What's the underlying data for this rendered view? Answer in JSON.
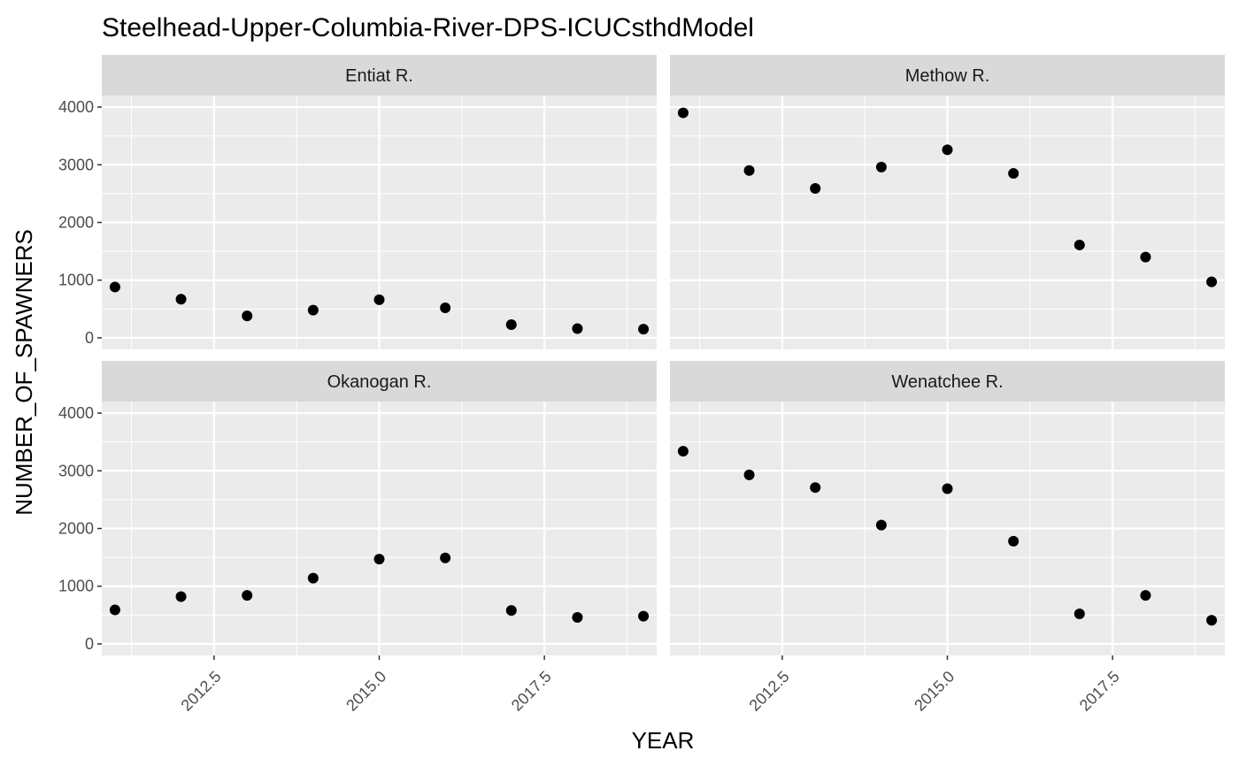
{
  "chart_data": {
    "type": "scatter",
    "title": "Steelhead-Upper-Columbia-River-DPS-ICUCsthdModel",
    "xlabel": "YEAR",
    "ylabel": "NUMBER_OF_SPAWNERS",
    "xlim": [
      2010.8,
      2019.2
    ],
    "ylim": [
      0,
      4000
    ],
    "x_ticks": [
      "2012.5",
      "2015.0",
      "2017.5"
    ],
    "y_ticks": [
      "0",
      "1000",
      "2000",
      "3000",
      "4000"
    ],
    "x": [
      2011,
      2012,
      2013,
      2014,
      2015,
      2016,
      2017,
      2018,
      2019
    ],
    "grid": true,
    "legend": "none",
    "colors": {
      "panel_bg": "#ebebeb",
      "strip_bg": "#d9d9d9",
      "point": "#000000",
      "grid": "#ffffff"
    },
    "facets": [
      {
        "name": "Entiat R.",
        "values": [
          880,
          670,
          380,
          480,
          660,
          520,
          230,
          160,
          150
        ]
      },
      {
        "name": "Methow R.",
        "values": [
          3900,
          2900,
          2590,
          2960,
          3260,
          2850,
          1610,
          1400,
          970
        ]
      },
      {
        "name": "Okanogan R.",
        "values": [
          590,
          820,
          840,
          1140,
          1470,
          1490,
          580,
          460,
          480
        ]
      },
      {
        "name": "Wenatchee R.",
        "values": [
          3340,
          2930,
          2710,
          2060,
          2690,
          1780,
          520,
          840,
          410
        ]
      }
    ]
  }
}
